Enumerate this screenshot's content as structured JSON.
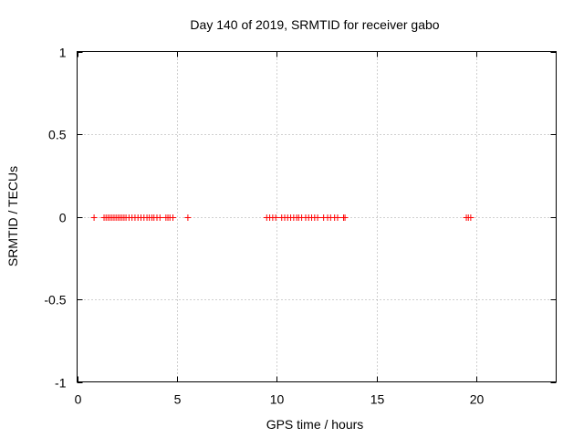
{
  "chart_data": {
    "type": "scatter",
    "title": "Day 140 of 2019, SRMTID for receiver gabo",
    "xlabel": "GPS time / hours",
    "ylabel": "SRMTID / TECUs",
    "xlim": [
      0,
      24
    ],
    "ylim": [
      -1,
      1
    ],
    "xticks": [
      0,
      5,
      10,
      15,
      20
    ],
    "yticks": [
      -1,
      -0.5,
      0,
      0.5,
      1
    ],
    "grid": true,
    "marker": "plus",
    "marker_color": "#ff0000",
    "series": [
      {
        "points": [
          {
            "x": 0.85,
            "y": 0
          },
          {
            "x": 1.35,
            "y": 0
          },
          {
            "x": 1.45,
            "y": 0
          },
          {
            "x": 1.55,
            "y": 0
          },
          {
            "x": 1.65,
            "y": 0
          },
          {
            "x": 1.75,
            "y": 0
          },
          {
            "x": 1.85,
            "y": 0
          },
          {
            "x": 1.95,
            "y": 0
          },
          {
            "x": 2.05,
            "y": 0
          },
          {
            "x": 2.15,
            "y": 0
          },
          {
            "x": 2.25,
            "y": 0
          },
          {
            "x": 2.35,
            "y": 0
          },
          {
            "x": 2.45,
            "y": 0
          },
          {
            "x": 2.6,
            "y": 0
          },
          {
            "x": 2.75,
            "y": 0
          },
          {
            "x": 2.9,
            "y": 0
          },
          {
            "x": 3.05,
            "y": 0
          },
          {
            "x": 3.2,
            "y": 0
          },
          {
            "x": 3.35,
            "y": 0
          },
          {
            "x": 3.5,
            "y": 0
          },
          {
            "x": 3.62,
            "y": 0
          },
          {
            "x": 3.75,
            "y": 0
          },
          {
            "x": 3.85,
            "y": 0
          },
          {
            "x": 4.0,
            "y": 0
          },
          {
            "x": 4.15,
            "y": 0
          },
          {
            "x": 4.45,
            "y": 0
          },
          {
            "x": 4.55,
            "y": 0
          },
          {
            "x": 4.65,
            "y": 0
          },
          {
            "x": 4.8,
            "y": 0
          },
          {
            "x": 5.55,
            "y": 0
          },
          {
            "x": 9.5,
            "y": 0
          },
          {
            "x": 9.65,
            "y": 0
          },
          {
            "x": 9.8,
            "y": 0
          },
          {
            "x": 9.95,
            "y": 0
          },
          {
            "x": 10.25,
            "y": 0
          },
          {
            "x": 10.4,
            "y": 0
          },
          {
            "x": 10.55,
            "y": 0
          },
          {
            "x": 10.7,
            "y": 0
          },
          {
            "x": 10.85,
            "y": 0
          },
          {
            "x": 11.0,
            "y": 0
          },
          {
            "x": 11.1,
            "y": 0
          },
          {
            "x": 11.25,
            "y": 0
          },
          {
            "x": 11.45,
            "y": 0
          },
          {
            "x": 11.6,
            "y": 0
          },
          {
            "x": 11.75,
            "y": 0
          },
          {
            "x": 11.9,
            "y": 0
          },
          {
            "x": 12.05,
            "y": 0
          },
          {
            "x": 12.35,
            "y": 0
          },
          {
            "x": 12.55,
            "y": 0
          },
          {
            "x": 12.7,
            "y": 0
          },
          {
            "x": 12.9,
            "y": 0
          },
          {
            "x": 13.05,
            "y": 0
          },
          {
            "x": 13.35,
            "y": 0
          },
          {
            "x": 13.42,
            "y": 0
          },
          {
            "x": 19.5,
            "y": 0
          },
          {
            "x": 19.6,
            "y": 0
          },
          {
            "x": 19.72,
            "y": 0
          }
        ]
      }
    ]
  }
}
